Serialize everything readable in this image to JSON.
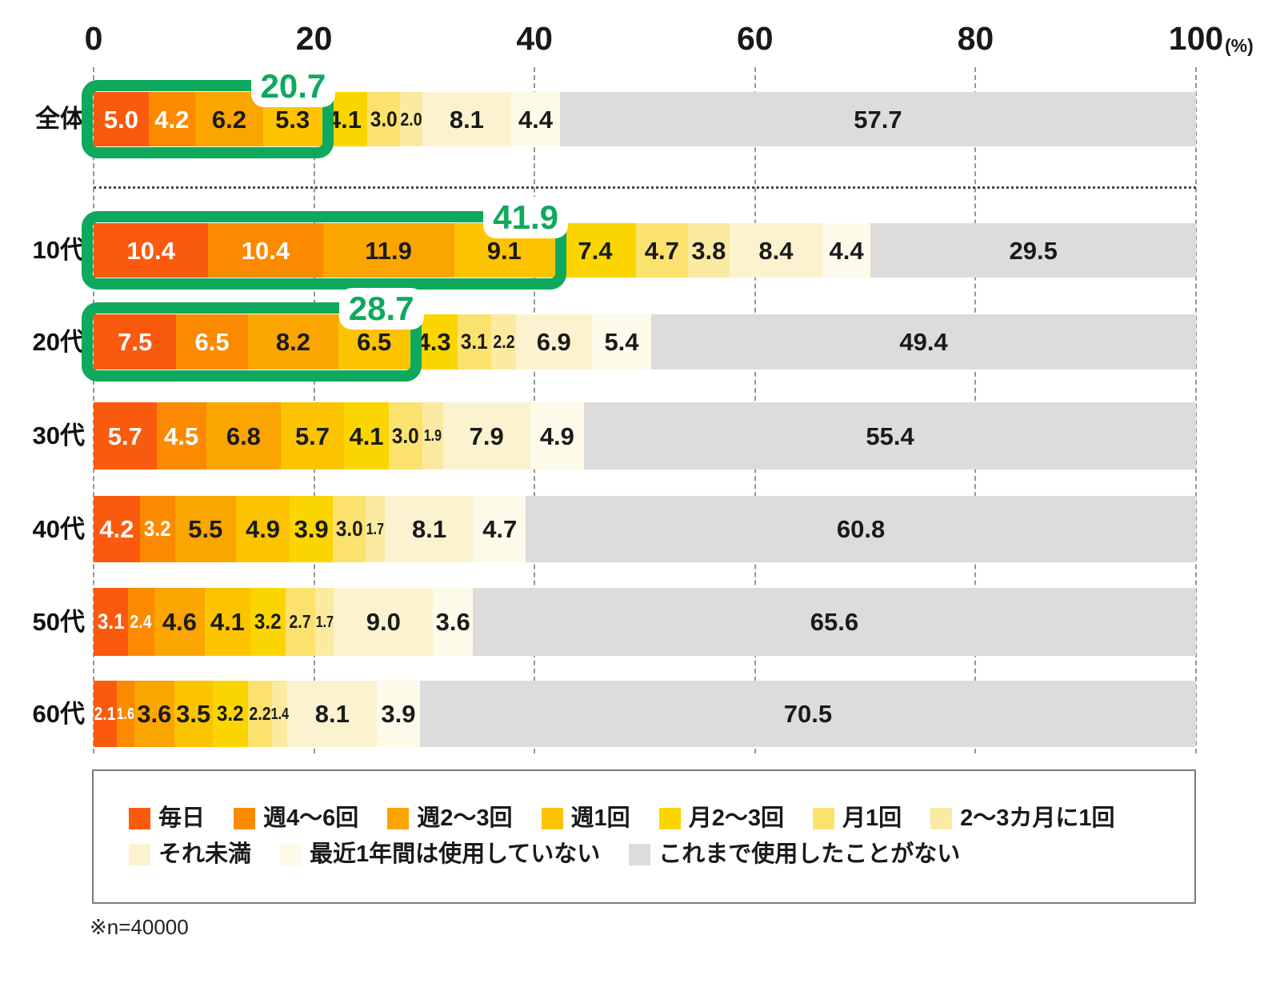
{
  "footnote": "※n=40000",
  "colors": {
    "highlight_green": "#0FA95D",
    "grid_grey": "#979797",
    "axis_text": "#191919"
  },
  "chart_data": {
    "type": "bar",
    "orientation": "horizontal",
    "stacked": true,
    "axis_ticks": [
      "0",
      "20",
      "40",
      "60",
      "80",
      "100"
    ],
    "axis_unit": "(%)",
    "axis_range": [
      0,
      100
    ],
    "grid": "dashed-vertical",
    "legend_position": "bottom-box",
    "categories": [
      "全体",
      "10代",
      "20代",
      "30代",
      "40代",
      "50代",
      "60代"
    ],
    "series": [
      {
        "name": "毎日",
        "color": "#FA5A0D",
        "text_color": "#FFFFFF",
        "values": [
          5.0,
          10.4,
          7.5,
          5.7,
          4.2,
          3.1,
          2.1
        ]
      },
      {
        "name": "週4〜6回",
        "color": "#FB8A00",
        "text_color": "#FFFFFF",
        "values": [
          4.2,
          10.4,
          6.5,
          4.5,
          3.2,
          2.4,
          1.6
        ]
      },
      {
        "name": "週2〜3回",
        "color": "#FBA500",
        "text_color": "#1A1A1A",
        "values": [
          6.2,
          11.9,
          8.2,
          6.8,
          5.5,
          4.6,
          3.6
        ]
      },
      {
        "name": "週1回",
        "color": "#FCC400",
        "text_color": "#1A1A1A",
        "values": [
          5.3,
          9.1,
          6.5,
          5.7,
          4.9,
          4.1,
          3.5
        ]
      },
      {
        "name": "月2〜3回",
        "color": "#FAD500",
        "text_color": "#1A1A1A",
        "values": [
          4.1,
          7.4,
          4.3,
          4.1,
          3.9,
          3.2,
          3.2
        ]
      },
      {
        "name": "月1回",
        "color": "#FBE26E",
        "text_color": "#1A1A1A",
        "values": [
          3.0,
          4.7,
          3.1,
          3.0,
          3.0,
          2.7,
          2.2
        ]
      },
      {
        "name": "2〜3カ月に1回",
        "color": "#FAEAA2",
        "text_color": "#1A1A1A",
        "values": [
          2.0,
          3.8,
          2.2,
          1.9,
          1.7,
          1.7,
          1.4
        ]
      },
      {
        "name": "それ未満",
        "color": "#FBF3D0",
        "text_color": "#1A1A1A",
        "values": [
          8.1,
          8.4,
          6.9,
          7.9,
          8.1,
          9.0,
          8.1
        ]
      },
      {
        "name": "最近1年間は使用していない",
        "color": "#FDFAE9",
        "text_color": "#1A1A1A",
        "values": [
          4.4,
          4.4,
          5.4,
          4.9,
          4.7,
          3.6,
          3.9
        ]
      },
      {
        "name": "これまで使用したことがない",
        "color": "#DCDCDC",
        "text_color": "#1A1A1A",
        "values": [
          57.7,
          29.5,
          49.4,
          55.4,
          60.8,
          65.6,
          70.5
        ]
      }
    ],
    "highlights": [
      {
        "category": "全体",
        "label": "20.7",
        "segments": 4
      },
      {
        "category": "10代",
        "label": "41.9",
        "segments": 4
      },
      {
        "category": "20代",
        "label": "28.7",
        "segments": 4
      }
    ],
    "legend_row_split": 7
  }
}
